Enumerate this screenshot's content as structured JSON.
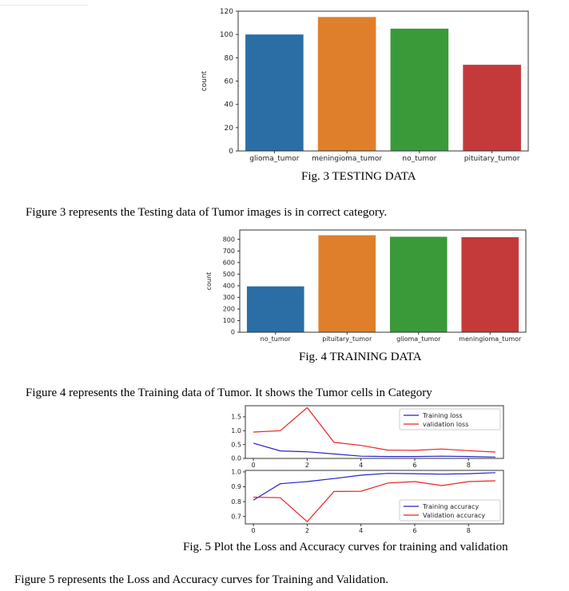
{
  "captions": {
    "fig3": "Fig. 3  TESTING DATA",
    "fig4": "Fig. 4 TRAINING DATA",
    "fig5": "Fig. 5 Plot the Loss and Accuracy curves for training and validation"
  },
  "paragraphs": {
    "p1": "Figure 3 represents the Testing data of  Tumor images is in correct category.",
    "p2": "Figure 4 represents the Training data of Tumor. It shows the Tumor cells in Category",
    "p3": "Figure 5 represents the Loss and Accuracy curves for Training and Validation."
  },
  "chart_data": [
    {
      "type": "bar",
      "categories": [
        "glioma_tumor",
        "meningioma_tumor",
        "no_tumor",
        "pituitary_tumor"
      ],
      "values": [
        100,
        115,
        105,
        74
      ],
      "colors": [
        "#2b6ea6",
        "#e07f2b",
        "#3a9a3a",
        "#c43a3a"
      ],
      "ylabel": "count",
      "ylim": [
        0,
        120
      ],
      "yticks": [
        "0",
        "20",
        "40",
        "60",
        "80",
        "100",
        "120"
      ]
    },
    {
      "type": "bar",
      "categories": [
        "no_tumor",
        "pituitary_tumor",
        "glioma_tumor",
        "meningioma_tumor"
      ],
      "values": [
        395,
        835,
        822,
        818
      ],
      "colors": [
        "#2b6ea6",
        "#e07f2b",
        "#3a9a3a",
        "#c43a3a"
      ],
      "ylabel": "count",
      "ylim": [
        0,
        880
      ],
      "yticks": [
        "0",
        "100",
        "200",
        "300",
        "400",
        "500",
        "600",
        "700",
        "800"
      ]
    },
    {
      "type": "line",
      "x": [
        0,
        1,
        2,
        3,
        4,
        5,
        6,
        7,
        8,
        9
      ],
      "xticks": [
        "0",
        "2",
        "4",
        "6",
        "8"
      ],
      "ylim": [
        0,
        1.9
      ],
      "yticks": [
        "0.0",
        "0.5",
        "1.0",
        "1.5"
      ],
      "legend": "top-right",
      "series": [
        {
          "name": "Training loss",
          "color": "#2222cc",
          "values": [
            0.55,
            0.27,
            0.24,
            0.16,
            0.08,
            0.07,
            0.07,
            0.08,
            0.07,
            0.05
          ]
        },
        {
          "name": "validation loss",
          "color": "#ee2222",
          "values": [
            0.95,
            1.0,
            1.83,
            0.58,
            0.47,
            0.3,
            0.29,
            0.34,
            0.28,
            0.23
          ]
        }
      ]
    },
    {
      "type": "line",
      "x": [
        0,
        1,
        2,
        3,
        4,
        5,
        6,
        7,
        8,
        9
      ],
      "xticks": [
        "0",
        "2",
        "4",
        "6",
        "8"
      ],
      "ylim": [
        0.65,
        1.01
      ],
      "yticks": [
        "0.7",
        "0.8",
        "0.9",
        "1.0"
      ],
      "legend": "bottom-right",
      "series": [
        {
          "name": "Training accuracy",
          "color": "#2222cc",
          "values": [
            0.81,
            0.92,
            0.935,
            0.955,
            0.978,
            0.99,
            0.988,
            0.985,
            0.988,
            0.995
          ]
        },
        {
          "name": "Validation accuracy",
          "color": "#ee2222",
          "values": [
            0.83,
            0.826,
            0.665,
            0.868,
            0.87,
            0.925,
            0.935,
            0.908,
            0.935,
            0.94
          ]
        }
      ]
    }
  ]
}
